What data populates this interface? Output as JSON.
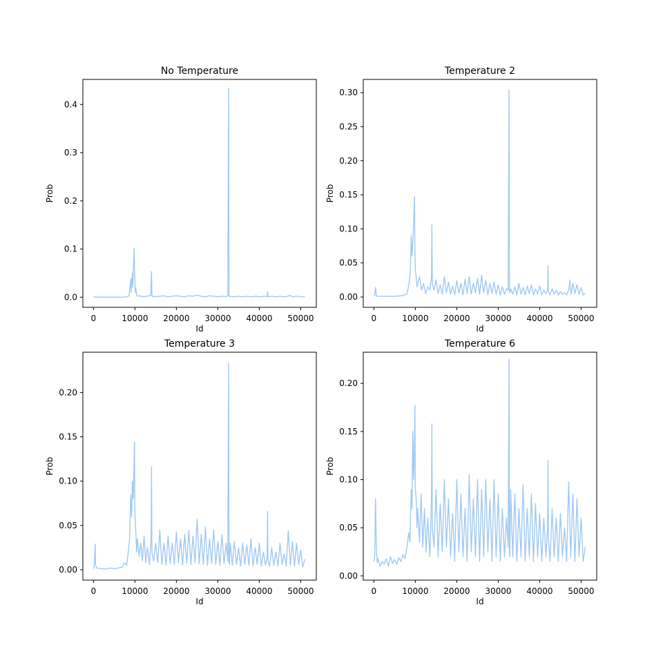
{
  "colors": {
    "series": "#a1c9f4",
    "axes": "#000000",
    "background": "#ffffff"
  },
  "chart_data": [
    {
      "type": "line",
      "title": "No Temperature",
      "xlabel": "Id",
      "ylabel": "Prob",
      "xlim": [
        -2560,
        53760
      ],
      "ylim": [
        -0.021,
        0.452
      ],
      "xticks": [
        0,
        10000,
        20000,
        30000,
        40000,
        50000
      ],
      "xtick_labels": [
        "0",
        "10000",
        "20000",
        "30000",
        "40000",
        "50000"
      ],
      "yticks": [
        0.0,
        0.1,
        0.2,
        0.3,
        0.4
      ],
      "ytick_labels": [
        "0.0",
        "0.1",
        "0.2",
        "0.3",
        "0.4"
      ],
      "grid": false,
      "series": [
        {
          "x": [
            0,
            300,
            600,
            1000,
            2000,
            3000,
            4000,
            5000,
            6000,
            7000,
            8000,
            8600,
            8800,
            9000,
            9100,
            9200,
            9300,
            9400,
            9500,
            9600,
            9700,
            9800,
            9900,
            10000,
            10100,
            10200,
            10400,
            10600,
            11000,
            12000,
            13000,
            13800,
            14000,
            14100,
            14200,
            14500,
            15000,
            16000,
            17000,
            18000,
            19000,
            20000,
            21000,
            22000,
            23000,
            24000,
            25000,
            26000,
            27000,
            28000,
            29000,
            30000,
            31000,
            32000,
            32400,
            32600,
            32700,
            32800,
            33000,
            34000,
            35000,
            36000,
            37000,
            38000,
            39000,
            40000,
            41000,
            41900,
            42000,
            42100,
            43000,
            44000,
            45000,
            46000,
            47000,
            47300,
            48000,
            49000,
            50000,
            51000
          ],
          "y": [
            0.0,
            0.0,
            0.001,
            0.0,
            0.0,
            0.0,
            0.0,
            0.0,
            0.0,
            0.0,
            0.001,
            0.003,
            0.02,
            0.037,
            0.01,
            0.04,
            0.03,
            0.05,
            0.02,
            0.06,
            0.07,
            0.101,
            0.06,
            0.03,
            0.01,
            0.02,
            0.005,
            0.002,
            0.003,
            0.001,
            0.002,
            0.004,
            0.053,
            0.003,
            0.001,
            0.002,
            0.001,
            0.002,
            0.003,
            0.001,
            0.002,
            0.003,
            0.002,
            0.001,
            0.003,
            0.002,
            0.004,
            0.002,
            0.001,
            0.003,
            0.002,
            0.001,
            0.002,
            0.001,
            0.003,
            0.433,
            0.003,
            0.001,
            0.002,
            0.001,
            0.002,
            0.001,
            0.002,
            0.001,
            0.002,
            0.001,
            0.002,
            0.001,
            0.011,
            0.001,
            0.002,
            0.001,
            0.002,
            0.001,
            0.002,
            0.004,
            0.001,
            0.002,
            0.001,
            0.001
          ]
        }
      ]
    },
    {
      "type": "line",
      "title": "Temperature 2",
      "xlabel": "Id",
      "ylabel": "Prob",
      "xlim": [
        -2560,
        53760
      ],
      "ylim": [
        -0.0152,
        0.3194
      ],
      "xticks": [
        0,
        10000,
        20000,
        30000,
        40000,
        50000
      ],
      "xtick_labels": [
        "0",
        "10000",
        "20000",
        "30000",
        "40000",
        "50000"
      ],
      "yticks": [
        0.0,
        0.05,
        0.1,
        0.15,
        0.2,
        0.25,
        0.3
      ],
      "ytick_labels": [
        "0.00",
        "0.05",
        "0.10",
        "0.15",
        "0.20",
        "0.25",
        "0.30"
      ],
      "grid": false,
      "series": [
        {
          "x": [
            0,
            200,
            400,
            600,
            800,
            1500,
            3000,
            5000,
            7000,
            8000,
            8500,
            8800,
            9000,
            9200,
            9400,
            9600,
            9800,
            9900,
            10000,
            10200,
            10400,
            10600,
            11000,
            11500,
            12000,
            12500,
            13000,
            13500,
            13900,
            14000,
            14100,
            14500,
            15000,
            15500,
            16000,
            16500,
            17000,
            17500,
            18000,
            18500,
            19000,
            19500,
            20000,
            20500,
            21000,
            21500,
            22000,
            22500,
            23000,
            23500,
            24000,
            24500,
            25000,
            25500,
            26000,
            26500,
            27000,
            27500,
            28000,
            28500,
            29000,
            29500,
            30000,
            30500,
            31000,
            31500,
            32000,
            32400,
            32600,
            32700,
            32800,
            33000,
            33500,
            34000,
            34500,
            35000,
            35500,
            36000,
            36500,
            37000,
            37500,
            38000,
            38500,
            39000,
            39500,
            40000,
            40500,
            41000,
            41500,
            41900,
            42000,
            42100,
            42500,
            43000,
            43500,
            44000,
            44500,
            45000,
            45500,
            46000,
            46500,
            47000,
            47300,
            47600,
            48000,
            48500,
            49000,
            49500,
            50000,
            50500,
            51000
          ],
          "y": [
            0.001,
            0.003,
            0.014,
            0.002,
            0.001,
            0.001,
            0.001,
            0.001,
            0.002,
            0.005,
            0.02,
            0.04,
            0.09,
            0.06,
            0.08,
            0.11,
            0.147,
            0.07,
            0.04,
            0.03,
            0.015,
            0.02,
            0.03,
            0.01,
            0.02,
            0.005,
            0.015,
            0.01,
            0.03,
            0.106,
            0.02,
            0.01,
            0.025,
            0.005,
            0.018,
            0.004,
            0.03,
            0.006,
            0.022,
            0.004,
            0.016,
            0.003,
            0.024,
            0.006,
            0.02,
            0.003,
            0.026,
            0.005,
            0.03,
            0.004,
            0.02,
            0.006,
            0.027,
            0.004,
            0.032,
            0.006,
            0.025,
            0.003,
            0.02,
            0.005,
            0.022,
            0.004,
            0.018,
            0.003,
            0.015,
            0.004,
            0.012,
            0.01,
            0.304,
            0.008,
            0.006,
            0.012,
            0.004,
            0.015,
            0.003,
            0.02,
            0.004,
            0.014,
            0.003,
            0.016,
            0.005,
            0.018,
            0.003,
            0.012,
            0.004,
            0.016,
            0.003,
            0.01,
            0.005,
            0.01,
            0.046,
            0.008,
            0.003,
            0.012,
            0.004,
            0.01,
            0.003,
            0.008,
            0.004,
            0.006,
            0.003,
            0.01,
            0.025,
            0.004,
            0.02,
            0.005,
            0.018,
            0.004,
            0.014,
            0.003,
            0.005
          ]
        }
      ]
    },
    {
      "type": "line",
      "title": "Temperature 3",
      "xlabel": "Id",
      "ylabel": "Prob",
      "xlim": [
        -2560,
        53760
      ],
      "ylim": [
        -0.0117,
        0.2455
      ],
      "xticks": [
        0,
        10000,
        20000,
        30000,
        40000,
        50000
      ],
      "xtick_labels": [
        "0",
        "10000",
        "20000",
        "30000",
        "40000",
        "50000"
      ],
      "yticks": [
        0.0,
        0.05,
        0.1,
        0.15,
        0.2
      ],
      "ytick_labels": [
        "0.00",
        "0.05",
        "0.10",
        "0.15",
        "0.20"
      ],
      "grid": false,
      "series": [
        {
          "x": [
            0,
            200,
            400,
            500,
            700,
            1000,
            2000,
            3000,
            4000,
            5000,
            6000,
            7000,
            7500,
            8000,
            8400,
            8700,
            9000,
            9200,
            9400,
            9600,
            9800,
            9900,
            10000,
            10200,
            10400,
            10600,
            11000,
            11400,
            11800,
            12200,
            12600,
            13000,
            13500,
            13900,
            14000,
            14100,
            14500,
            15000,
            15500,
            16000,
            16500,
            17000,
            17500,
            18000,
            18500,
            19000,
            19500,
            20000,
            20500,
            21000,
            21500,
            22000,
            22500,
            23000,
            23500,
            24000,
            24500,
            25000,
            25500,
            26000,
            26500,
            27000,
            27500,
            28000,
            28500,
            29000,
            29500,
            30000,
            30500,
            31000,
            31500,
            32000,
            32400,
            32600,
            32700,
            32800,
            33000,
            33500,
            34000,
            34500,
            35000,
            35500,
            36000,
            36500,
            37000,
            37500,
            38000,
            38500,
            39000,
            39500,
            40000,
            40500,
            41000,
            41500,
            41900,
            42000,
            42100,
            42500,
            43000,
            43500,
            44000,
            44500,
            45000,
            45500,
            46000,
            46500,
            47000,
            47500,
            48000,
            48500,
            49000,
            49500,
            50000,
            50500,
            51000
          ],
          "y": [
            0.001,
            0.005,
            0.029,
            0.006,
            0.002,
            0.002,
            0.001,
            0.001,
            0.002,
            0.001,
            0.002,
            0.003,
            0.008,
            0.005,
            0.02,
            0.035,
            0.085,
            0.06,
            0.1,
            0.08,
            0.124,
            0.144,
            0.06,
            0.045,
            0.02,
            0.035,
            0.015,
            0.03,
            0.01,
            0.038,
            0.008,
            0.025,
            0.006,
            0.035,
            0.116,
            0.02,
            0.01,
            0.03,
            0.008,
            0.045,
            0.006,
            0.03,
            0.005,
            0.038,
            0.007,
            0.03,
            0.006,
            0.043,
            0.008,
            0.035,
            0.005,
            0.04,
            0.007,
            0.045,
            0.006,
            0.038,
            0.008,
            0.057,
            0.007,
            0.04,
            0.006,
            0.048,
            0.005,
            0.035,
            0.007,
            0.045,
            0.006,
            0.032,
            0.005,
            0.04,
            0.007,
            0.03,
            0.01,
            0.233,
            0.008,
            0.006,
            0.03,
            0.005,
            0.032,
            0.006,
            0.025,
            0.004,
            0.03,
            0.006,
            0.028,
            0.005,
            0.035,
            0.004,
            0.025,
            0.006,
            0.03,
            0.004,
            0.02,
            0.005,
            0.015,
            0.066,
            0.01,
            0.004,
            0.025,
            0.005,
            0.02,
            0.004,
            0.03,
            0.006,
            0.018,
            0.004,
            0.044,
            0.005,
            0.032,
            0.004,
            0.03,
            0.006,
            0.022,
            0.003,
            0.012
          ]
        }
      ]
    },
    {
      "type": "line",
      "title": "Temperature 6",
      "xlabel": "Id",
      "ylabel": "Prob",
      "xlim": [
        -2560,
        53760
      ],
      "ylim": [
        -0.0044,
        0.2324
      ],
      "xticks": [
        0,
        10000,
        20000,
        30000,
        40000,
        50000
      ],
      "xtick_labels": [
        "0",
        "10000",
        "20000",
        "30000",
        "40000",
        "50000"
      ],
      "yticks": [
        0.0,
        0.05,
        0.1,
        0.15,
        0.2
      ],
      "ytick_labels": [
        "0.00",
        "0.05",
        "0.10",
        "0.15",
        "0.20"
      ],
      "grid": false,
      "series": [
        {
          "x": [
            0,
            200,
            400,
            600,
            800,
            1000,
            1500,
            2000,
            2500,
            3000,
            3500,
            4000,
            4500,
            5000,
            5500,
            6000,
            6500,
            7000,
            7500,
            8000,
            8400,
            8700,
            9000,
            9200,
            9400,
            9600,
            9800,
            9900,
            10000,
            10200,
            10400,
            10600,
            11000,
            11400,
            11800,
            12200,
            12600,
            13000,
            13500,
            13900,
            14000,
            14100,
            14500,
            15000,
            15500,
            16000,
            16500,
            17000,
            17500,
            18000,
            18500,
            19000,
            19500,
            20000,
            20500,
            21000,
            21500,
            22000,
            22500,
            23000,
            23500,
            24000,
            24500,
            25000,
            25500,
            26000,
            26500,
            27000,
            27500,
            28000,
            28500,
            29000,
            29500,
            30000,
            30500,
            31000,
            31500,
            32000,
            32400,
            32600,
            32700,
            32800,
            33000,
            33500,
            34000,
            34500,
            35000,
            35500,
            36000,
            36500,
            37000,
            37500,
            38000,
            38500,
            39000,
            39500,
            40000,
            40500,
            41000,
            41500,
            41900,
            42000,
            42100,
            42500,
            43000,
            43500,
            44000,
            44500,
            45000,
            45500,
            46000,
            46500,
            47000,
            47500,
            48000,
            48500,
            49000,
            49500,
            50000,
            50500,
            51000
          ],
          "y": [
            0.015,
            0.02,
            0.08,
            0.03,
            0.014,
            0.018,
            0.01,
            0.015,
            0.012,
            0.018,
            0.01,
            0.02,
            0.013,
            0.017,
            0.012,
            0.019,
            0.015,
            0.022,
            0.018,
            0.03,
            0.045,
            0.035,
            0.09,
            0.07,
            0.15,
            0.1,
            0.14,
            0.177,
            0.09,
            0.08,
            0.05,
            0.07,
            0.035,
            0.085,
            0.03,
            0.07,
            0.025,
            0.06,
            0.02,
            0.08,
            0.158,
            0.05,
            0.03,
            0.09,
            0.02,
            0.075,
            0.025,
            0.1,
            0.03,
            0.08,
            0.02,
            0.065,
            0.015,
            0.1,
            0.025,
            0.085,
            0.02,
            0.07,
            0.015,
            0.105,
            0.025,
            0.08,
            0.02,
            0.1,
            0.015,
            0.09,
            0.02,
            0.1,
            0.025,
            0.08,
            0.015,
            0.1,
            0.02,
            0.085,
            0.015,
            0.07,
            0.02,
            0.06,
            0.03,
            0.225,
            0.03,
            0.02,
            0.09,
            0.02,
            0.085,
            0.015,
            0.07,
            0.02,
            0.095,
            0.015,
            0.07,
            0.02,
            0.085,
            0.015,
            0.075,
            0.02,
            0.065,
            0.015,
            0.06,
            0.02,
            0.05,
            0.12,
            0.04,
            0.015,
            0.07,
            0.02,
            0.06,
            0.015,
            0.065,
            0.02,
            0.05,
            0.015,
            0.098,
            0.02,
            0.085,
            0.015,
            0.08,
            0.02,
            0.06,
            0.015,
            0.03
          ]
        }
      ]
    }
  ]
}
